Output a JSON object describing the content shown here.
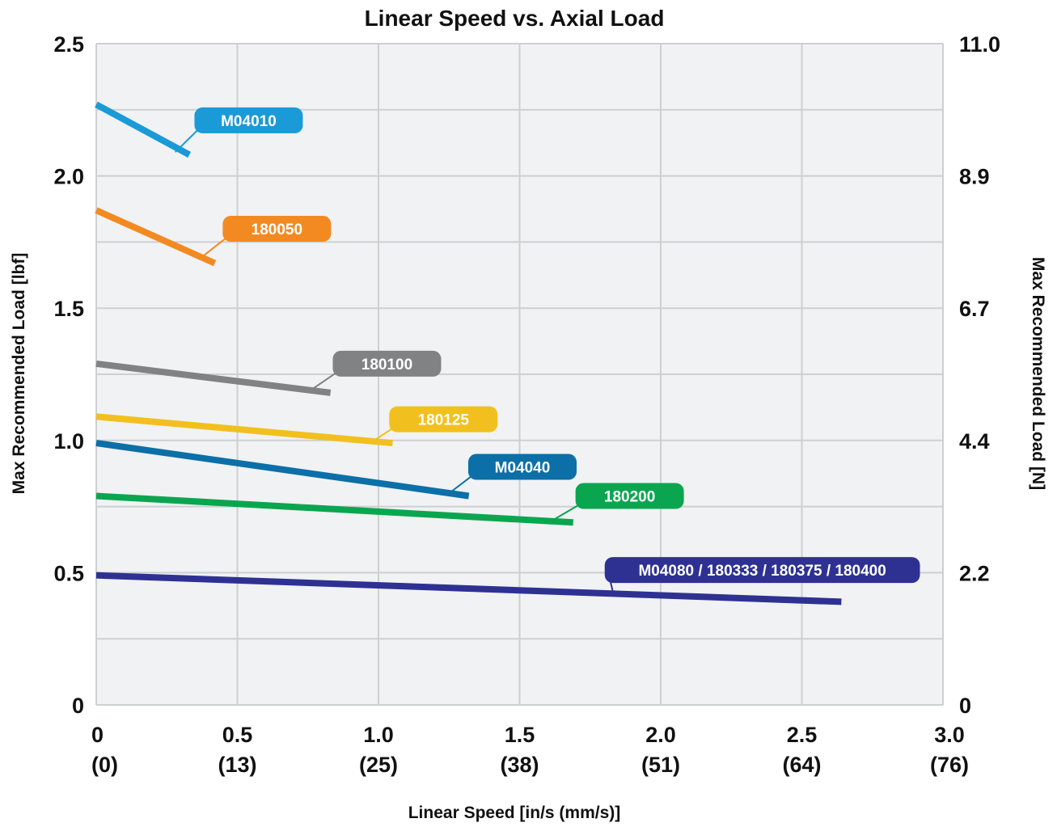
{
  "chart_data": {
    "type": "line",
    "title": "Linear Speed vs. Axial Load",
    "xlabel": "Linear Speed [in/s (mm/s)]",
    "ylabel": "Max Recommended Load [lbf]",
    "ylabel_right": "Max Recommended Load [N]",
    "xlim": [
      0,
      3.0
    ],
    "ylim": [
      0,
      2.5
    ],
    "x_ticks": [
      {
        "value": 0,
        "label": "0",
        "sublabel": "(0)"
      },
      {
        "value": 0.5,
        "label": "0.5",
        "sublabel": "(13)"
      },
      {
        "value": 1.0,
        "label": "1.0",
        "sublabel": "(25)"
      },
      {
        "value": 1.5,
        "label": "1.5",
        "sublabel": "(38)"
      },
      {
        "value": 2.0,
        "label": "2.0",
        "sublabel": "(51)"
      },
      {
        "value": 2.5,
        "label": "2.5",
        "sublabel": "(64)"
      },
      {
        "value": 3.0,
        "label": "3.0",
        "sublabel": "(76)"
      }
    ],
    "y_ticks": [
      {
        "value": 0,
        "label": "0"
      },
      {
        "value": 0.5,
        "label": "0.5"
      },
      {
        "value": 1.0,
        "label": "1.0"
      },
      {
        "value": 1.5,
        "label": "1.5"
      },
      {
        "value": 2.0,
        "label": "2.0"
      },
      {
        "value": 2.5,
        "label": "2.5"
      }
    ],
    "y_ticks_right": [
      {
        "value": 0,
        "label": "0"
      },
      {
        "value": 0.5,
        "label": "2.2"
      },
      {
        "value": 1.0,
        "label": "4.4"
      },
      {
        "value": 1.5,
        "label": "6.7"
      },
      {
        "value": 2.0,
        "label": "8.9"
      },
      {
        "value": 2.5,
        "label": "11.0"
      }
    ],
    "y_minor_step": 0.25,
    "grid": true,
    "series": [
      {
        "name": "M04010",
        "color": "#1a9ad6",
        "x": [
          0,
          0.33
        ],
        "y": [
          2.27,
          2.08
        ],
        "label_anchor": [
          0.28,
          2.09
        ],
        "label_pos": [
          0.54,
          2.21
        ]
      },
      {
        "name": "180050",
        "color": "#f38a21",
        "x": [
          0,
          0.42
        ],
        "y": [
          1.87,
          1.67
        ],
        "label_anchor": [
          0.37,
          1.69
        ],
        "label_pos": [
          0.64,
          1.8
        ]
      },
      {
        "name": "180100",
        "color": "#808284",
        "x": [
          0,
          0.83
        ],
        "y": [
          1.29,
          1.18
        ],
        "label_anchor": [
          0.76,
          1.19
        ],
        "label_pos": [
          1.03,
          1.29
        ]
      },
      {
        "name": "180125",
        "color": "#f2c01e",
        "x": [
          0,
          1.05
        ],
        "y": [
          1.09,
          0.99
        ],
        "label_anchor": [
          0.97,
          0.99
        ],
        "label_pos": [
          1.23,
          1.08
        ]
      },
      {
        "name": "M04040",
        "color": "#0c6fa7",
        "x": [
          0,
          1.32
        ],
        "y": [
          0.99,
          0.79
        ],
        "label_anchor": [
          1.25,
          0.8
        ],
        "label_pos": [
          1.51,
          0.9
        ]
      },
      {
        "name": "180200",
        "color": "#0aa64f",
        "x": [
          0,
          1.69
        ],
        "y": [
          0.79,
          0.69
        ],
        "label_anchor": [
          1.62,
          0.7
        ],
        "label_pos": [
          1.89,
          0.79
        ]
      },
      {
        "name": "M04080 / 180333 / 180375 / 180400",
        "color": "#2e3192",
        "x": [
          0,
          2.64
        ],
        "y": [
          0.49,
          0.39
        ],
        "label_anchor": [
          1.83,
          0.43
        ],
        "label_pos": [
          2.36,
          0.51
        ]
      }
    ]
  }
}
